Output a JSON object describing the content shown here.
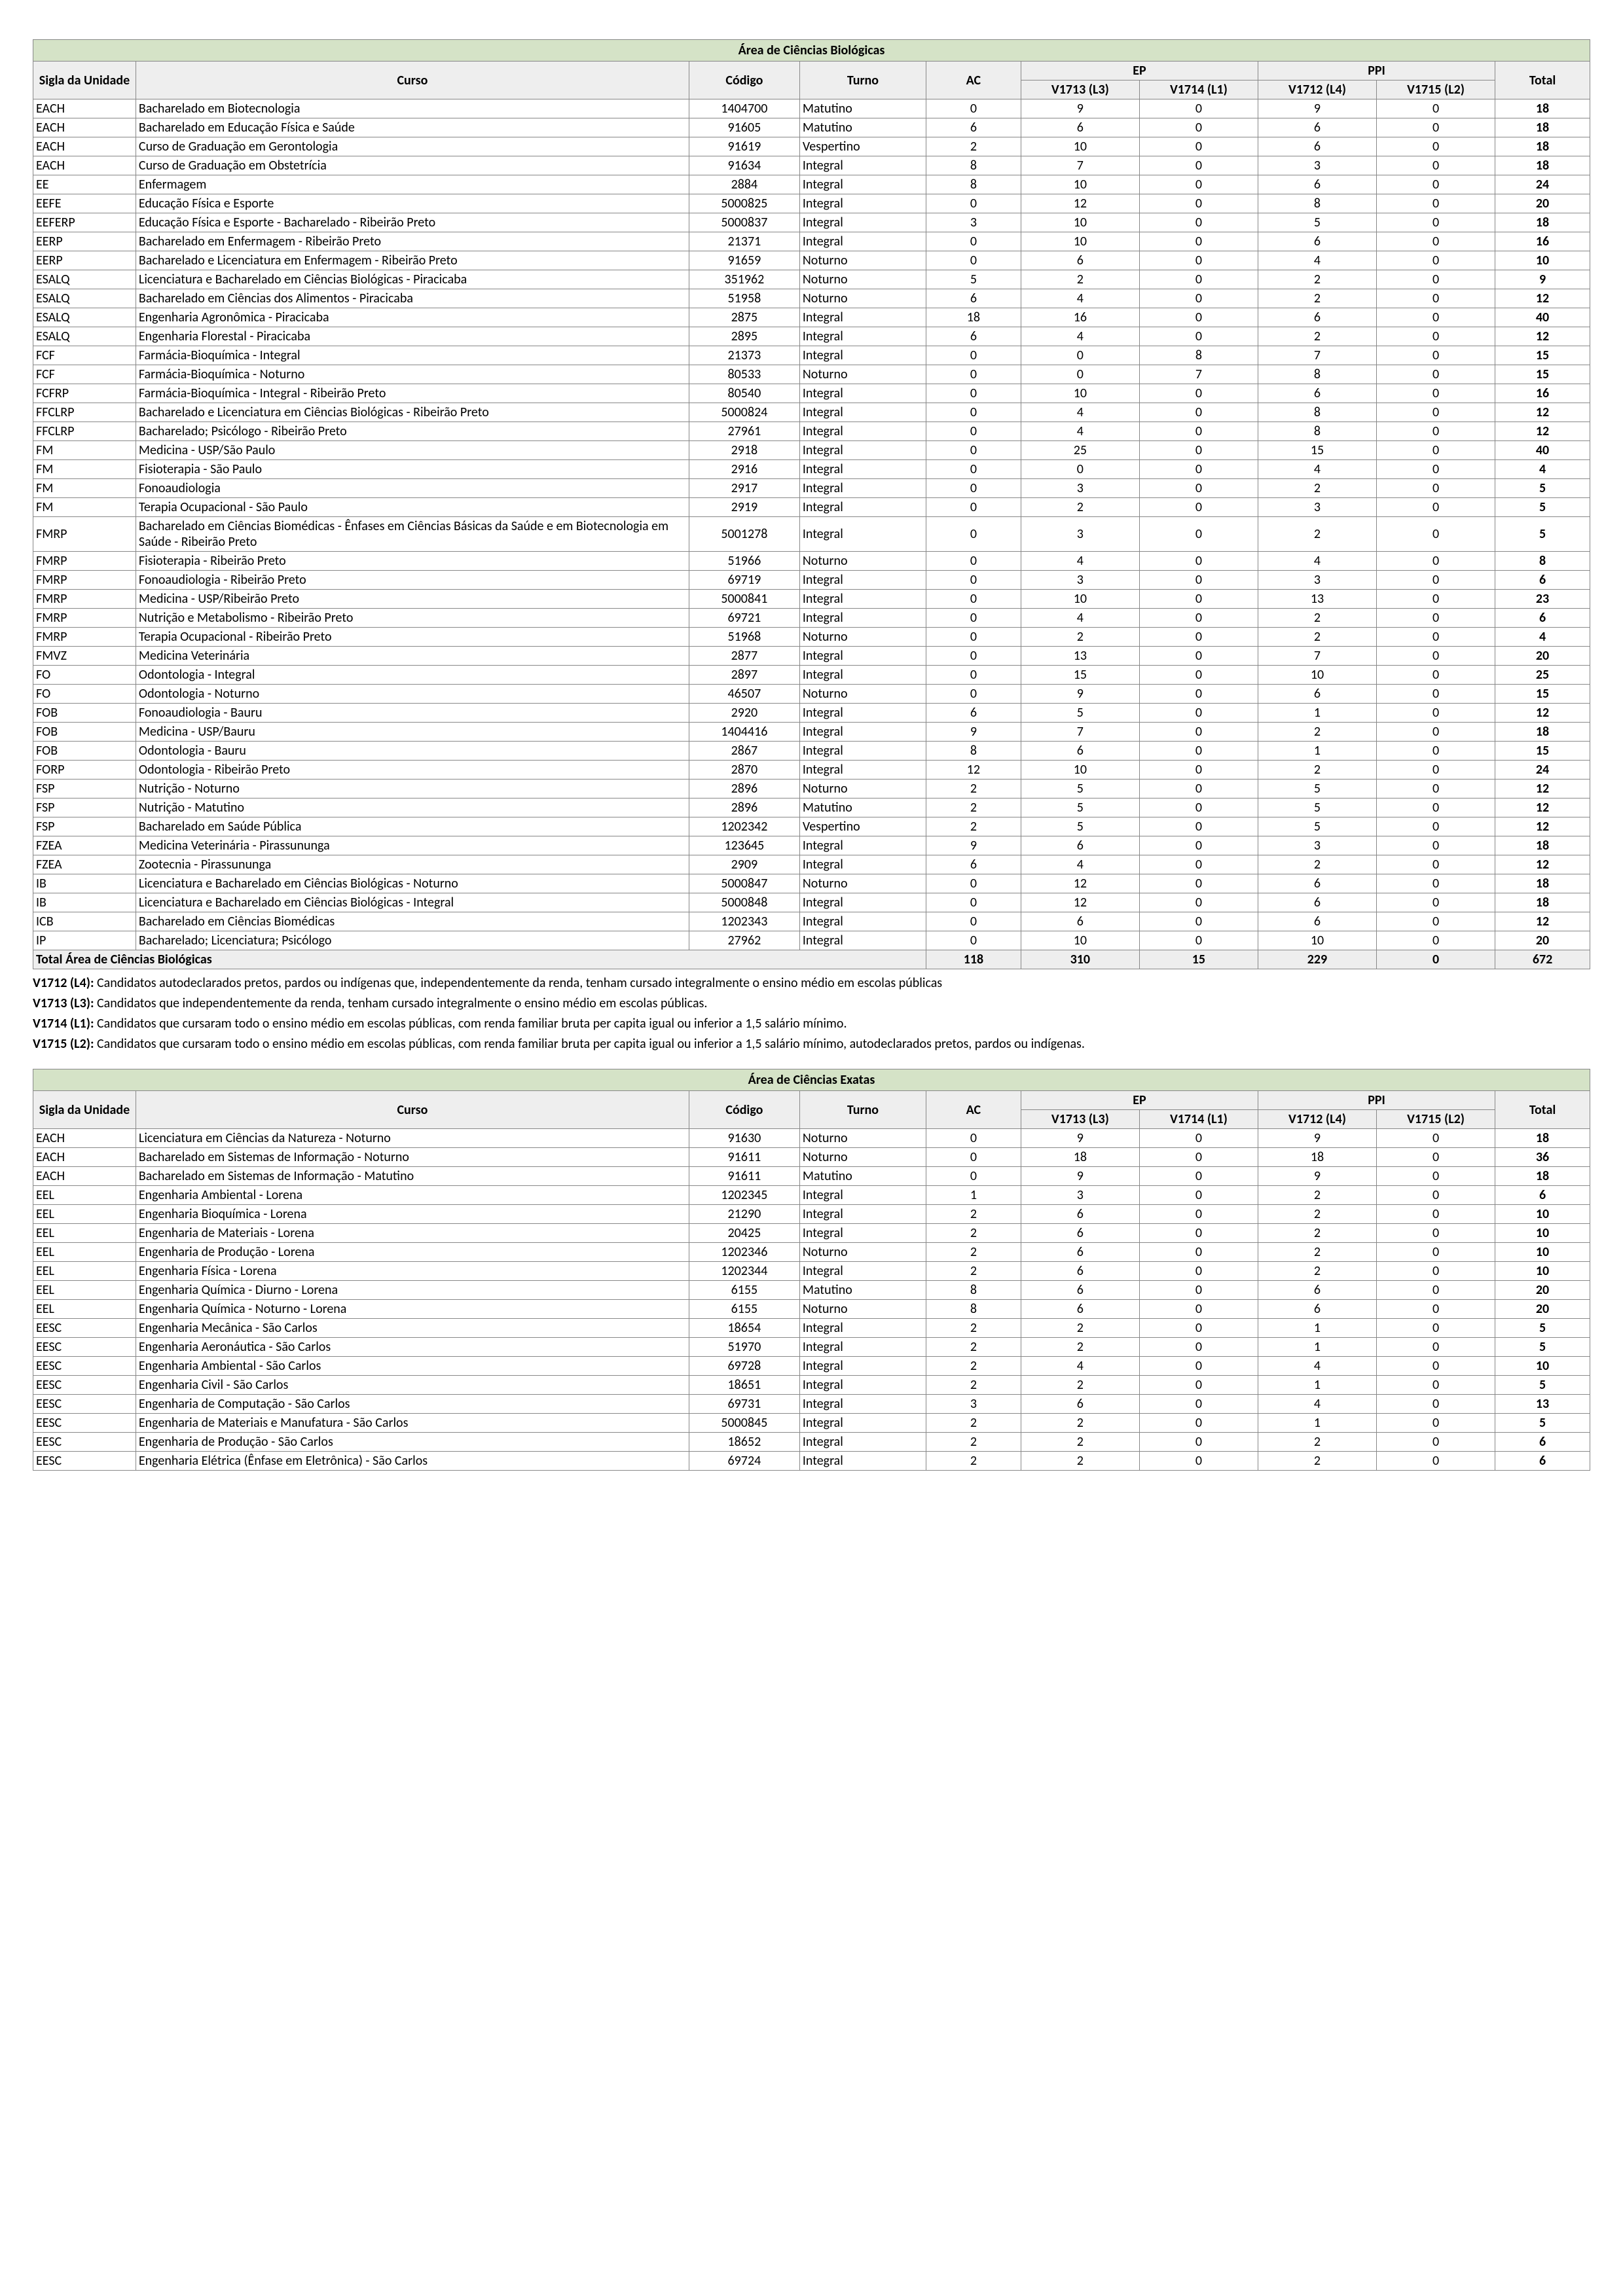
{
  "tables": [
    {
      "area_title": "Área de Ciências Biológicas",
      "rows": [
        {
          "sigla": "EACH",
          "curso": "Bacharelado em Biotecnologia",
          "codigo": "1404700",
          "turno": "Matutino",
          "ac": 0,
          "v1713": 9,
          "v1714": 0,
          "v1712": 9,
          "v1715": 0,
          "total": 18
        },
        {
          "sigla": "EACH",
          "curso": "Bacharelado em Educação Física e Saúde",
          "codigo": "91605",
          "turno": "Matutino",
          "ac": 6,
          "v1713": 6,
          "v1714": 0,
          "v1712": 6,
          "v1715": 0,
          "total": 18
        },
        {
          "sigla": "EACH",
          "curso": "Curso de Graduação em Gerontologia",
          "codigo": "91619",
          "turno": "Vespertino",
          "ac": 2,
          "v1713": 10,
          "v1714": 0,
          "v1712": 6,
          "v1715": 0,
          "total": 18
        },
        {
          "sigla": "EACH",
          "curso": "Curso de Graduação em Obstetrícia",
          "codigo": "91634",
          "turno": "Integral",
          "ac": 8,
          "v1713": 7,
          "v1714": 0,
          "v1712": 3,
          "v1715": 0,
          "total": 18
        },
        {
          "sigla": "EE",
          "curso": "Enfermagem",
          "codigo": "2884",
          "turno": "Integral",
          "ac": 8,
          "v1713": 10,
          "v1714": 0,
          "v1712": 6,
          "v1715": 0,
          "total": 24
        },
        {
          "sigla": "EEFE",
          "curso": "Educação Física e Esporte",
          "codigo": "5000825",
          "turno": "Integral",
          "ac": 0,
          "v1713": 12,
          "v1714": 0,
          "v1712": 8,
          "v1715": 0,
          "total": 20
        },
        {
          "sigla": "EEFERP",
          "curso": "Educação Física e Esporte - Bacharelado - Ribeirão Preto",
          "codigo": "5000837",
          "turno": "Integral",
          "ac": 3,
          "v1713": 10,
          "v1714": 0,
          "v1712": 5,
          "v1715": 0,
          "total": 18
        },
        {
          "sigla": "EERP",
          "curso": "Bacharelado em Enfermagem - Ribeirão Preto",
          "codigo": "21371",
          "turno": "Integral",
          "ac": 0,
          "v1713": 10,
          "v1714": 0,
          "v1712": 6,
          "v1715": 0,
          "total": 16
        },
        {
          "sigla": "EERP",
          "curso": "Bacharelado e Licenciatura em Enfermagem - Ribeirão Preto",
          "codigo": "91659",
          "turno": "Noturno",
          "ac": 0,
          "v1713": 6,
          "v1714": 0,
          "v1712": 4,
          "v1715": 0,
          "total": 10
        },
        {
          "sigla": "ESALQ",
          "curso": "Licenciatura e Bacharelado em Ciências Biológicas - Piracicaba",
          "codigo": "351962",
          "turno": "Noturno",
          "ac": 5,
          "v1713": 2,
          "v1714": 0,
          "v1712": 2,
          "v1715": 0,
          "total": 9
        },
        {
          "sigla": "ESALQ",
          "curso": "Bacharelado em Ciências dos Alimentos - Piracicaba",
          "codigo": "51958",
          "turno": "Noturno",
          "ac": 6,
          "v1713": 4,
          "v1714": 0,
          "v1712": 2,
          "v1715": 0,
          "total": 12
        },
        {
          "sigla": "ESALQ",
          "curso": "Engenharia Agronômica - Piracicaba",
          "codigo": "2875",
          "turno": "Integral",
          "ac": 18,
          "v1713": 16,
          "v1714": 0,
          "v1712": 6,
          "v1715": 0,
          "total": 40
        },
        {
          "sigla": "ESALQ",
          "curso": "Engenharia Florestal - Piracicaba",
          "codigo": "2895",
          "turno": "Integral",
          "ac": 6,
          "v1713": 4,
          "v1714": 0,
          "v1712": 2,
          "v1715": 0,
          "total": 12
        },
        {
          "sigla": "FCF",
          "curso": "Farmácia-Bioquímica - Integral",
          "codigo": "21373",
          "turno": "Integral",
          "ac": 0,
          "v1713": 0,
          "v1714": 8,
          "v1712": 7,
          "v1715": 0,
          "total": 15
        },
        {
          "sigla": "FCF",
          "curso": "Farmácia-Bioquímica - Noturno",
          "codigo": "80533",
          "turno": "Noturno",
          "ac": 0,
          "v1713": 0,
          "v1714": 7,
          "v1712": 8,
          "v1715": 0,
          "total": 15
        },
        {
          "sigla": "FCFRP",
          "curso": "Farmácia-Bioquímica - Integral - Ribeirão Preto",
          "codigo": "80540",
          "turno": "Integral",
          "ac": 0,
          "v1713": 10,
          "v1714": 0,
          "v1712": 6,
          "v1715": 0,
          "total": 16
        },
        {
          "sigla": "FFCLRP",
          "curso": "Bacharelado e Licenciatura em Ciências Biológicas - Ribeirão Preto",
          "codigo": "5000824",
          "turno": "Integral",
          "ac": 0,
          "v1713": 4,
          "v1714": 0,
          "v1712": 8,
          "v1715": 0,
          "total": 12
        },
        {
          "sigla": "FFCLRP",
          "curso": "Bacharelado; Psicólogo - Ribeirão Preto",
          "codigo": "27961",
          "turno": "Integral",
          "ac": 0,
          "v1713": 4,
          "v1714": 0,
          "v1712": 8,
          "v1715": 0,
          "total": 12
        },
        {
          "sigla": "FM",
          "curso": "Medicina - USP/São Paulo",
          "codigo": "2918",
          "turno": "Integral",
          "ac": 0,
          "v1713": 25,
          "v1714": 0,
          "v1712": 15,
          "v1715": 0,
          "total": 40
        },
        {
          "sigla": "FM",
          "curso": "Fisioterapia - São Paulo",
          "codigo": "2916",
          "turno": "Integral",
          "ac": 0,
          "v1713": 0,
          "v1714": 0,
          "v1712": 4,
          "v1715": 0,
          "total": 4
        },
        {
          "sigla": "FM",
          "curso": "Fonoaudiologia",
          "codigo": "2917",
          "turno": "Integral",
          "ac": 0,
          "v1713": 3,
          "v1714": 0,
          "v1712": 2,
          "v1715": 0,
          "total": 5
        },
        {
          "sigla": "FM",
          "curso": "Terapia Ocupacional - São Paulo",
          "codigo": "2919",
          "turno": "Integral",
          "ac": 0,
          "v1713": 2,
          "v1714": 0,
          "v1712": 3,
          "v1715": 0,
          "total": 5
        },
        {
          "sigla": "FMRP",
          "curso": "Bacharelado em Ciências Biomédicas - Ênfases em Ciências Básicas da Saúde e em Biotecnologia em Saúde - Ribeirão Preto",
          "codigo": "5001278",
          "turno": "Integral",
          "ac": 0,
          "v1713": 3,
          "v1714": 0,
          "v1712": 2,
          "v1715": 0,
          "total": 5
        },
        {
          "sigla": "FMRP",
          "curso": "Fisioterapia - Ribeirão Preto",
          "codigo": "51966",
          "turno": "Noturno",
          "ac": 0,
          "v1713": 4,
          "v1714": 0,
          "v1712": 4,
          "v1715": 0,
          "total": 8
        },
        {
          "sigla": "FMRP",
          "curso": "Fonoaudiologia - Ribeirão Preto",
          "codigo": "69719",
          "turno": "Integral",
          "ac": 0,
          "v1713": 3,
          "v1714": 0,
          "v1712": 3,
          "v1715": 0,
          "total": 6
        },
        {
          "sigla": "FMRP",
          "curso": "Medicina - USP/Ribeirão Preto",
          "codigo": "5000841",
          "turno": "Integral",
          "ac": 0,
          "v1713": 10,
          "v1714": 0,
          "v1712": 13,
          "v1715": 0,
          "total": 23
        },
        {
          "sigla": "FMRP",
          "curso": "Nutrição e Metabolismo - Ribeirão Preto",
          "codigo": "69721",
          "turno": "Integral",
          "ac": 0,
          "v1713": 4,
          "v1714": 0,
          "v1712": 2,
          "v1715": 0,
          "total": 6
        },
        {
          "sigla": "FMRP",
          "curso": "Terapia Ocupacional - Ribeirão Preto",
          "codigo": "51968",
          "turno": "Noturno",
          "ac": 0,
          "v1713": 2,
          "v1714": 0,
          "v1712": 2,
          "v1715": 0,
          "total": 4
        },
        {
          "sigla": "FMVZ",
          "curso": "Medicina Veterinária",
          "codigo": "2877",
          "turno": "Integral",
          "ac": 0,
          "v1713": 13,
          "v1714": 0,
          "v1712": 7,
          "v1715": 0,
          "total": 20
        },
        {
          "sigla": "FO",
          "curso": "Odontologia - Integral",
          "codigo": "2897",
          "turno": "Integral",
          "ac": 0,
          "v1713": 15,
          "v1714": 0,
          "v1712": 10,
          "v1715": 0,
          "total": 25
        },
        {
          "sigla": "FO",
          "curso": "Odontologia - Noturno",
          "codigo": "46507",
          "turno": "Noturno",
          "ac": 0,
          "v1713": 9,
          "v1714": 0,
          "v1712": 6,
          "v1715": 0,
          "total": 15
        },
        {
          "sigla": "FOB",
          "curso": "Fonoaudiologia - Bauru",
          "codigo": "2920",
          "turno": "Integral",
          "ac": 6,
          "v1713": 5,
          "v1714": 0,
          "v1712": 1,
          "v1715": 0,
          "total": 12
        },
        {
          "sigla": "FOB",
          "curso": "Medicina - USP/Bauru",
          "codigo": "1404416",
          "turno": "Integral",
          "ac": 9,
          "v1713": 7,
          "v1714": 0,
          "v1712": 2,
          "v1715": 0,
          "total": 18
        },
        {
          "sigla": "FOB",
          "curso": "Odontologia - Bauru",
          "codigo": "2867",
          "turno": "Integral",
          "ac": 8,
          "v1713": 6,
          "v1714": 0,
          "v1712": 1,
          "v1715": 0,
          "total": 15
        },
        {
          "sigla": "FORP",
          "curso": "Odontologia - Ribeirão Preto",
          "codigo": "2870",
          "turno": "Integral",
          "ac": 12,
          "v1713": 10,
          "v1714": 0,
          "v1712": 2,
          "v1715": 0,
          "total": 24
        },
        {
          "sigla": "FSP",
          "curso": "Nutrição - Noturno",
          "codigo": "2896",
          "turno": "Noturno",
          "ac": 2,
          "v1713": 5,
          "v1714": 0,
          "v1712": 5,
          "v1715": 0,
          "total": 12
        },
        {
          "sigla": "FSP",
          "curso": "Nutrição - Matutino",
          "codigo": "2896",
          "turno": "Matutino",
          "ac": 2,
          "v1713": 5,
          "v1714": 0,
          "v1712": 5,
          "v1715": 0,
          "total": 12
        },
        {
          "sigla": "FSP",
          "curso": "Bacharelado em Saúde Pública",
          "codigo": "1202342",
          "turno": "Vespertino",
          "ac": 2,
          "v1713": 5,
          "v1714": 0,
          "v1712": 5,
          "v1715": 0,
          "total": 12
        },
        {
          "sigla": "FZEA",
          "curso": "Medicina Veterinária - Pirassununga",
          "codigo": "123645",
          "turno": "Integral",
          "ac": 9,
          "v1713": 6,
          "v1714": 0,
          "v1712": 3,
          "v1715": 0,
          "total": 18
        },
        {
          "sigla": "FZEA",
          "curso": "Zootecnia - Pirassununga",
          "codigo": "2909",
          "turno": "Integral",
          "ac": 6,
          "v1713": 4,
          "v1714": 0,
          "v1712": 2,
          "v1715": 0,
          "total": 12
        },
        {
          "sigla": "IB",
          "curso": "Licenciatura e Bacharelado em Ciências Biológicas - Noturno",
          "codigo": "5000847",
          "turno": "Noturno",
          "ac": 0,
          "v1713": 12,
          "v1714": 0,
          "v1712": 6,
          "v1715": 0,
          "total": 18
        },
        {
          "sigla": "IB",
          "curso": "Licenciatura e Bacharelado em Ciências Biológicas - Integral",
          "codigo": "5000848",
          "turno": "Integral",
          "ac": 0,
          "v1713": 12,
          "v1714": 0,
          "v1712": 6,
          "v1715": 0,
          "total": 18
        },
        {
          "sigla": "ICB",
          "curso": "Bacharelado em Ciências Biomédicas",
          "codigo": "1202343",
          "turno": "Integral",
          "ac": 0,
          "v1713": 6,
          "v1714": 0,
          "v1712": 6,
          "v1715": 0,
          "total": 12
        },
        {
          "sigla": "IP",
          "curso": "Bacharelado; Licenciatura; Psicólogo",
          "codigo": "27962",
          "turno": "Integral",
          "ac": 0,
          "v1713": 10,
          "v1714": 0,
          "v1712": 10,
          "v1715": 0,
          "total": 20
        }
      ],
      "total_label": "Total Área de Ciências Biológicas",
      "totals": {
        "ac": 118,
        "v1713": 310,
        "v1714": 15,
        "v1712": 229,
        "v1715": 0,
        "total": 672
      }
    },
    {
      "area_title": "Área de Ciências Exatas",
      "rows": [
        {
          "sigla": "EACH",
          "curso": "Licenciatura em Ciências da Natureza - Noturno",
          "codigo": "91630",
          "turno": "Noturno",
          "ac": 0,
          "v1713": 9,
          "v1714": 0,
          "v1712": 9,
          "v1715": 0,
          "total": 18
        },
        {
          "sigla": "EACH",
          "curso": "Bacharelado em Sistemas de Informação - Noturno",
          "codigo": "91611",
          "turno": "Noturno",
          "ac": 0,
          "v1713": 18,
          "v1714": 0,
          "v1712": 18,
          "v1715": 0,
          "total": 36
        },
        {
          "sigla": "EACH",
          "curso": "Bacharelado em Sistemas de Informação - Matutino",
          "codigo": "91611",
          "turno": "Matutino",
          "ac": 0,
          "v1713": 9,
          "v1714": 0,
          "v1712": 9,
          "v1715": 0,
          "total": 18
        },
        {
          "sigla": "EEL",
          "curso": "Engenharia Ambiental - Lorena",
          "codigo": "1202345",
          "turno": "Integral",
          "ac": 1,
          "v1713": 3,
          "v1714": 0,
          "v1712": 2,
          "v1715": 0,
          "total": 6
        },
        {
          "sigla": "EEL",
          "curso": "Engenharia Bioquímica - Lorena",
          "codigo": "21290",
          "turno": "Integral",
          "ac": 2,
          "v1713": 6,
          "v1714": 0,
          "v1712": 2,
          "v1715": 0,
          "total": 10
        },
        {
          "sigla": "EEL",
          "curso": "Engenharia de Materiais - Lorena",
          "codigo": "20425",
          "turno": "Integral",
          "ac": 2,
          "v1713": 6,
          "v1714": 0,
          "v1712": 2,
          "v1715": 0,
          "total": 10
        },
        {
          "sigla": "EEL",
          "curso": "Engenharia de Produção - Lorena",
          "codigo": "1202346",
          "turno": "Noturno",
          "ac": 2,
          "v1713": 6,
          "v1714": 0,
          "v1712": 2,
          "v1715": 0,
          "total": 10
        },
        {
          "sigla": "EEL",
          "curso": "Engenharia Física - Lorena",
          "codigo": "1202344",
          "turno": "Integral",
          "ac": 2,
          "v1713": 6,
          "v1714": 0,
          "v1712": 2,
          "v1715": 0,
          "total": 10
        },
        {
          "sigla": "EEL",
          "curso": "Engenharia Química - Diurno - Lorena",
          "codigo": "6155",
          "turno": "Matutino",
          "ac": 8,
          "v1713": 6,
          "v1714": 0,
          "v1712": 6,
          "v1715": 0,
          "total": 20
        },
        {
          "sigla": "EEL",
          "curso": "Engenharia Química - Noturno - Lorena",
          "codigo": "6155",
          "turno": "Noturno",
          "ac": 8,
          "v1713": 6,
          "v1714": 0,
          "v1712": 6,
          "v1715": 0,
          "total": 20
        },
        {
          "sigla": "EESC",
          "curso": "Engenharia Mecânica - São Carlos",
          "codigo": "18654",
          "turno": "Integral",
          "ac": 2,
          "v1713": 2,
          "v1714": 0,
          "v1712": 1,
          "v1715": 0,
          "total": 5
        },
        {
          "sigla": "EESC",
          "curso": "Engenharia Aeronáutica - São Carlos",
          "codigo": "51970",
          "turno": "Integral",
          "ac": 2,
          "v1713": 2,
          "v1714": 0,
          "v1712": 1,
          "v1715": 0,
          "total": 5
        },
        {
          "sigla": "EESC",
          "curso": "Engenharia Ambiental - São Carlos",
          "codigo": "69728",
          "turno": "Integral",
          "ac": 2,
          "v1713": 4,
          "v1714": 0,
          "v1712": 4,
          "v1715": 0,
          "total": 10
        },
        {
          "sigla": "EESC",
          "curso": "Engenharia Civil - São Carlos",
          "codigo": "18651",
          "turno": "Integral",
          "ac": 2,
          "v1713": 2,
          "v1714": 0,
          "v1712": 1,
          "v1715": 0,
          "total": 5
        },
        {
          "sigla": "EESC",
          "curso": "Engenharia de Computação - São Carlos",
          "codigo": "69731",
          "turno": "Integral",
          "ac": 3,
          "v1713": 6,
          "v1714": 0,
          "v1712": 4,
          "v1715": 0,
          "total": 13
        },
        {
          "sigla": "EESC",
          "curso": "Engenharia de Materiais e Manufatura - São Carlos",
          "codigo": "5000845",
          "turno": "Integral",
          "ac": 2,
          "v1713": 2,
          "v1714": 0,
          "v1712": 1,
          "v1715": 0,
          "total": 5
        },
        {
          "sigla": "EESC",
          "curso": "Engenharia de Produção - São Carlos",
          "codigo": "18652",
          "turno": "Integral",
          "ac": 2,
          "v1713": 2,
          "v1714": 0,
          "v1712": 2,
          "v1715": 0,
          "total": 6
        },
        {
          "sigla": "EESC",
          "curso": "Engenharia Elétrica (Ênfase em Eletrônica) - São Carlos",
          "codigo": "69724",
          "turno": "Integral",
          "ac": 2,
          "v1713": 2,
          "v1714": 0,
          "v1712": 2,
          "v1715": 0,
          "total": 6
        }
      ]
    }
  ],
  "headers": {
    "sigla": "Sigla da Unidade",
    "curso": "Curso",
    "codigo": "Código",
    "turno": "Turno",
    "ac": "AC",
    "ep": "EP",
    "ppi": "PPI",
    "v1713": "V1713 (L3)",
    "v1714": "V1714 (L1)",
    "v1712": "V1712 (L4)",
    "v1715": "V1715 (L2)",
    "total": "Total"
  },
  "notes": {
    "n1b": "V1712 (L4):",
    "n1": "Candidatos autodeclarados pretos, pardos ou indígenas que, independentemente da renda, tenham cursado integralmente o ensino médio em escolas públicas",
    "n2b": "V1713 (L3):",
    "n2": "Candidatos que independentemente da renda, tenham cursado integralmente o ensino médio em escolas públicas.",
    "n3b": "V1714 (L1):",
    "n3": "Candidatos que cursaram todo o ensino médio em escolas públicas, com renda familiar bruta per capita igual ou inferior a 1,5 salário mínimo.",
    "n4b": "V1715 (L2):",
    "n4": "Candidatos que cursaram todo o ensino médio em escolas públicas, com renda familiar bruta per capita igual ou inferior a 1,5 salário mínimo, autodeclarados pretos, pardos ou indígenas."
  }
}
